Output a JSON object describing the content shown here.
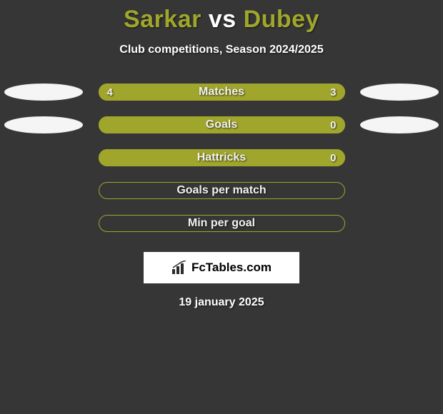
{
  "title": {
    "player1": "Sarkar",
    "vs": "vs",
    "player2": "Dubey",
    "player1_color": "#a0a62b",
    "vs_color": "#ffffff",
    "player2_color": "#a0a62b"
  },
  "subtitle": "Club competitions, Season 2024/2025",
  "background_color": "#363636",
  "ellipse_color": "#f5f5f5",
  "rows": [
    {
      "label": "Matches",
      "left_value": "4",
      "right_value": "3",
      "left_pct": 57,
      "right_pct": 43,
      "left_color": "#a0a62b",
      "right_color": "#a0a62b",
      "border_color": "#a0a62b",
      "show_left_ellipse": true,
      "show_right_ellipse": true,
      "show_values": true
    },
    {
      "label": "Goals",
      "left_value": "",
      "right_value": "0",
      "left_pct": 100,
      "right_pct": 0,
      "left_color": "#a0a62b",
      "right_color": "#a0a62b",
      "border_color": "#a0a62b",
      "show_left_ellipse": true,
      "show_right_ellipse": true,
      "show_values": true
    },
    {
      "label": "Hattricks",
      "left_value": "",
      "right_value": "0",
      "left_pct": 100,
      "right_pct": 0,
      "left_color": "#a0a62b",
      "right_color": "#a0a62b",
      "border_color": "#a0a62b",
      "show_left_ellipse": false,
      "show_right_ellipse": false,
      "show_values": true
    },
    {
      "label": "Goals per match",
      "left_value": "",
      "right_value": "",
      "left_pct": 0,
      "right_pct": 0,
      "left_color": "#a0a62b",
      "right_color": "#a0a62b",
      "border_color": "#a0a62b",
      "show_left_ellipse": false,
      "show_right_ellipse": false,
      "show_values": false
    },
    {
      "label": "Min per goal",
      "left_value": "",
      "right_value": "",
      "left_pct": 0,
      "right_pct": 0,
      "left_color": "#a0a62b",
      "right_color": "#a0a62b",
      "border_color": "#a0a62b",
      "show_left_ellipse": false,
      "show_right_ellipse": false,
      "show_values": false
    }
  ],
  "logo": {
    "text": "FcTables.com",
    "bar_color": "#2b2b2b"
  },
  "date": "19 january 2025"
}
